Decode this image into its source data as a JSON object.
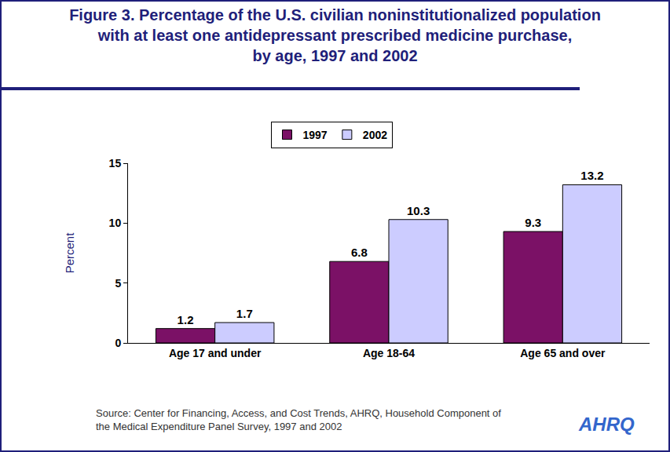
{
  "chart_data": {
    "type": "bar",
    "title": "Figure 3. Percentage of the U.S. civilian noninstitutionalized population\nwith at least one antidepressant prescribed medicine purchase,\nby age, 1997 and 2002",
    "y_label": "Percent",
    "categories": [
      "Age 17 and under",
      "Age 18-64",
      "Age 65 and over"
    ],
    "series": [
      {
        "name": "1997",
        "color": "#7B1166",
        "values": [
          1.2,
          6.8,
          9.3
        ]
      },
      {
        "name": "2002",
        "color": "#CCCCFF",
        "values": [
          1.7,
          10.3,
          13.2
        ]
      }
    ],
    "ylim": [
      0,
      15
    ],
    "yticks": [
      0,
      5,
      10,
      15
    ],
    "grid": false,
    "legend": "top",
    "data_labels": true,
    "source": "Source: Center for Financing, Access, and Cost Trends, AHRQ, Household Component of\nthe Medical Expenditure Panel Survey, 1997 and 2002",
    "annotations": [
      "AHRQ"
    ]
  }
}
